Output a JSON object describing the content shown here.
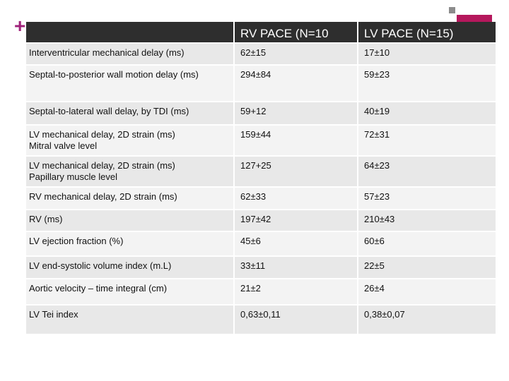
{
  "decor": {
    "plus_symbol": "+"
  },
  "table": {
    "headers": [
      "",
      "RV PACE (N=10",
      "LV PACE (N=15)"
    ],
    "rows": [
      {
        "label": "Interventricular mechanical delay (ms)",
        "label2": "",
        "rv": "62±15",
        "lv": "17±10"
      },
      {
        "label": "Septal-to-posterior wall motion delay (ms)",
        "label2": "",
        "rv": "294±84",
        "lv": "59±23"
      },
      {
        "label": "Septal-to-lateral wall delay, by TDI (ms)",
        "label2": "",
        "rv": "59+12",
        "lv": "40±19"
      },
      {
        "label": "LV mechanical delay, 2D strain (ms)",
        "label2": "Mitral valve level",
        "rv": "159±44",
        "lv": "72±31"
      },
      {
        "label": "LV mechanical delay, 2D strain (ms)",
        "label2": "Papillary muscle level",
        "rv": "127+25",
        "lv": "64±23"
      },
      {
        "label": "RV mechanical delay, 2D strain (ms)",
        "label2": "",
        "rv": "62±33",
        "lv": "57±23"
      },
      {
        "label": "RV (ms)",
        "label2": "",
        "rv": "197±42",
        "lv": "210±43"
      },
      {
        "label": "LV ejection fraction (%)",
        "label2": "",
        "rv": "45±6",
        "lv": "60±6"
      },
      {
        "label": "LV end-systolic volume index (m.L)",
        "label2": "",
        "rv": "33±11",
        "lv": "22±5"
      },
      {
        "label": "Aortic velocity – time integral (cm)",
        "label2": "",
        "rv": "21±2",
        "lv": "26±4"
      },
      {
        "label": "LV Tei index",
        "label2": "",
        "rv": "0,63±0,11",
        "lv": "0,38±0,07"
      }
    ]
  }
}
